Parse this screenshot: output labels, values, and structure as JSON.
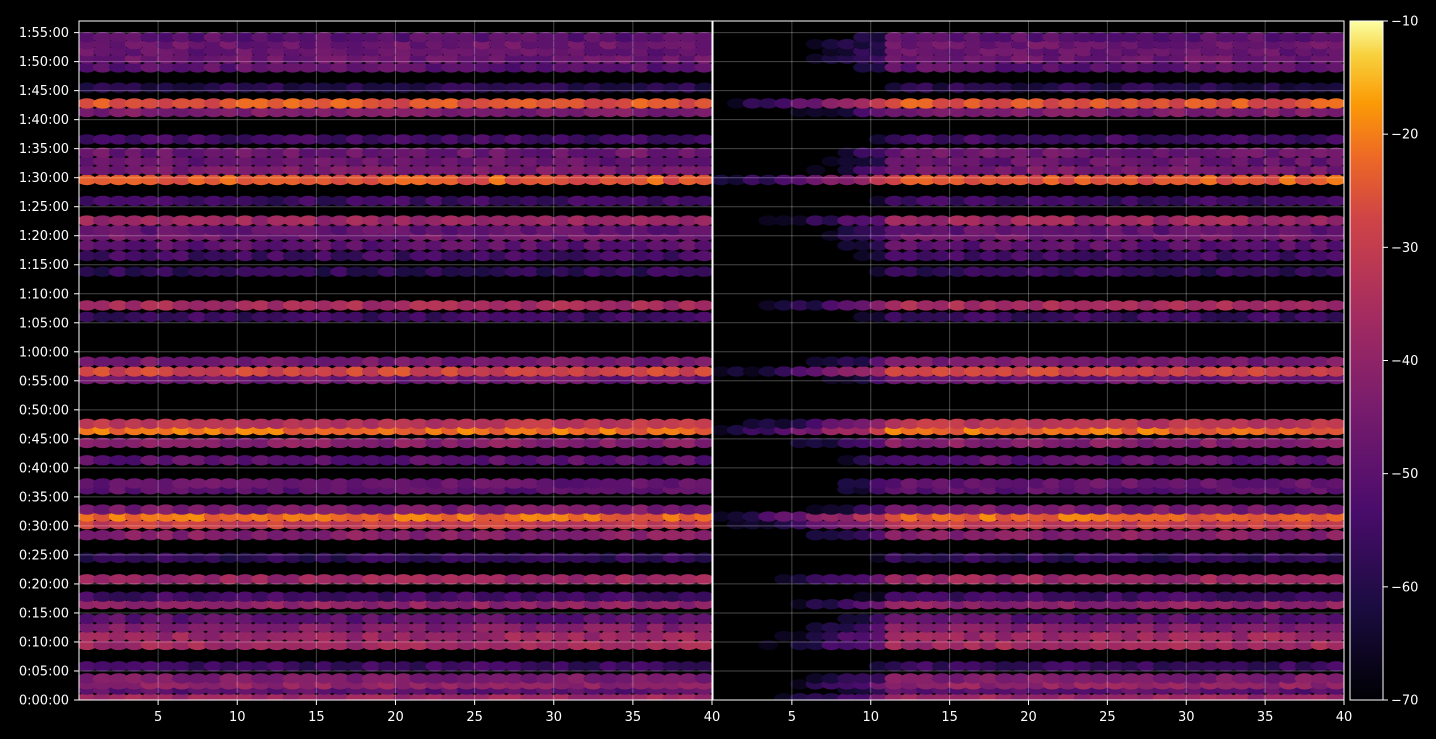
{
  "chart_data": {
    "type": "heatmap",
    "title": "",
    "xlabel": "",
    "ylabel": "",
    "colormap": "inferno",
    "background": "#000000",
    "grid": true,
    "panels": [
      {
        "name": "",
        "x_ticks": [
          "5",
          "10",
          "15",
          "20",
          "25",
          "30",
          "35",
          "40"
        ],
        "x_tick_values": [
          5,
          10,
          15,
          20,
          25,
          30,
          35,
          40
        ],
        "xlim": [
          1,
          40
        ],
        "onset": 1
      },
      {
        "name": "",
        "x_ticks": [
          "5",
          "10",
          "15",
          "20",
          "25",
          "30",
          "35",
          "40"
        ],
        "x_tick_values": [
          5,
          10,
          15,
          20,
          25,
          30,
          35,
          40
        ],
        "xlim": [
          1,
          40
        ],
        "onset": 12
      }
    ],
    "y_ticks": [
      "0:00:00",
      "0:05:00",
      "0:10:00",
      "0:15:00",
      "0:20:00",
      "0:25:00",
      "0:30:00",
      "0:35:00",
      "0:40:00",
      "0:45:00",
      "0:50:00",
      "0:55:00",
      "1:00:00",
      "1:05:00",
      "1:10:00",
      "1:15:00",
      "1:20:00",
      "1:25:00",
      "1:30:00",
      "1:35:00",
      "1:40:00",
      "1:45:00",
      "1:50:00",
      "1:55:00"
    ],
    "ylim_minutes": [
      0,
      117
    ],
    "colorbar": {
      "ticks": [
        "−10",
        "−20",
        "−30",
        "−40",
        "−50",
        "−60",
        "−70"
      ],
      "tick_values": [
        -10,
        -20,
        -30,
        -40,
        -50,
        -60,
        -70
      ],
      "range": [
        -70,
        -10
      ]
    },
    "bands": [
      {
        "minute": 0.3,
        "value": -38
      },
      {
        "minute": 1.8,
        "value": -50
      },
      {
        "minute": 2.7,
        "value": -40
      },
      {
        "minute": 3.7,
        "value": -44
      },
      {
        "minute": 5.8,
        "value": -56
      },
      {
        "minute": 9.5,
        "value": -37
      },
      {
        "minute": 11.0,
        "value": -38
      },
      {
        "minute": 12.5,
        "value": -43
      },
      {
        "minute": 14.0,
        "value": -50
      },
      {
        "minute": 16.5,
        "value": -40
      },
      {
        "minute": 17.8,
        "value": -55
      },
      {
        "minute": 20.8,
        "value": -38
      },
      {
        "minute": 24.5,
        "value": -58
      },
      {
        "minute": 28.4,
        "value": -42
      },
      {
        "minute": 30.3,
        "value": -30
      },
      {
        "minute": 31.6,
        "value": -22
      },
      {
        "minute": 32.8,
        "value": -45
      },
      {
        "minute": 36.3,
        "value": -50
      },
      {
        "minute": 37.3,
        "value": -48
      },
      {
        "minute": 41.3,
        "value": -50
      },
      {
        "minute": 44.3,
        "value": -42
      },
      {
        "minute": 46.5,
        "value": -22
      },
      {
        "minute": 47.6,
        "value": -32
      },
      {
        "minute": 55.3,
        "value": -47
      },
      {
        "minute": 56.6,
        "value": -28
      },
      {
        "minute": 58.3,
        "value": -45
      },
      {
        "minute": 66.0,
        "value": -56
      },
      {
        "minute": 68.0,
        "value": -36
      },
      {
        "minute": 73.8,
        "value": -58
      },
      {
        "minute": 76.5,
        "value": -55
      },
      {
        "minute": 78.3,
        "value": -50
      },
      {
        "minute": 80.0,
        "value": -46
      },
      {
        "minute": 81.0,
        "value": -49
      },
      {
        "minute": 82.6,
        "value": -38
      },
      {
        "minute": 86.0,
        "value": -56
      },
      {
        "minute": 89.6,
        "value": -24
      },
      {
        "minute": 91.3,
        "value": -45
      },
      {
        "minute": 92.8,
        "value": -48
      },
      {
        "minute": 94.3,
        "value": -47
      },
      {
        "minute": 96.6,
        "value": -55
      },
      {
        "minute": 101.3,
        "value": -44
      },
      {
        "minute": 102.8,
        "value": -25
      },
      {
        "minute": 105.5,
        "value": -60
      },
      {
        "minute": 109.0,
        "value": -50
      },
      {
        "minute": 110.5,
        "value": -47
      },
      {
        "minute": 111.8,
        "value": -48
      },
      {
        "minute": 113.0,
        "value": -47
      },
      {
        "minute": 114.2,
        "value": -50
      }
    ]
  }
}
